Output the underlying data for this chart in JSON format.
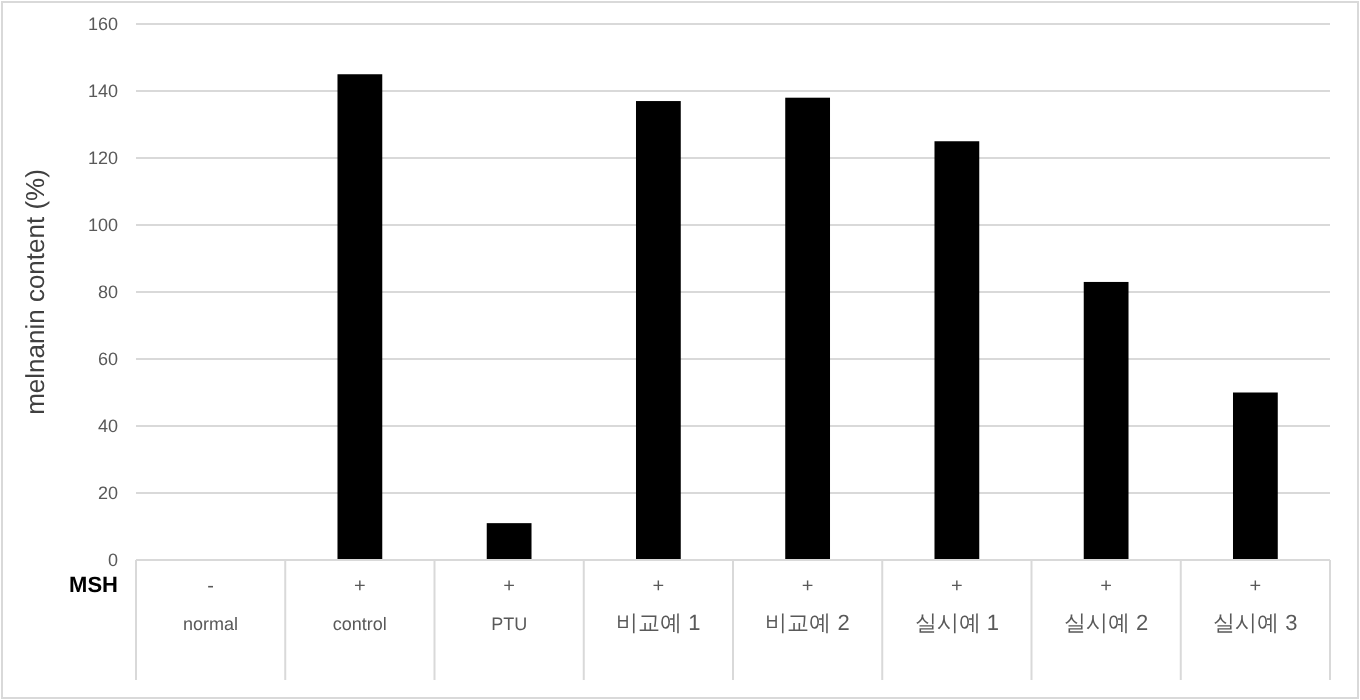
{
  "chart_data": {
    "type": "bar",
    "ylabel": "melnanin content (%)",
    "categories": [
      "normal",
      "control",
      "PTU",
      "비교예 1",
      "비교예 2",
      "실시예 1",
      "실시예 2",
      "실시예 3"
    ],
    "values": [
      0,
      145,
      11,
      137,
      138,
      125,
      83,
      50
    ],
    "color": "#000000",
    "ylim": [
      0,
      160
    ],
    "yticks": [
      0,
      20,
      40,
      60,
      80,
      100,
      120,
      140,
      160
    ],
    "grid": "y",
    "annotations": [
      "MSH",
      "-",
      "+",
      "+",
      "+",
      "+",
      "+",
      "+",
      "+"
    ]
  }
}
